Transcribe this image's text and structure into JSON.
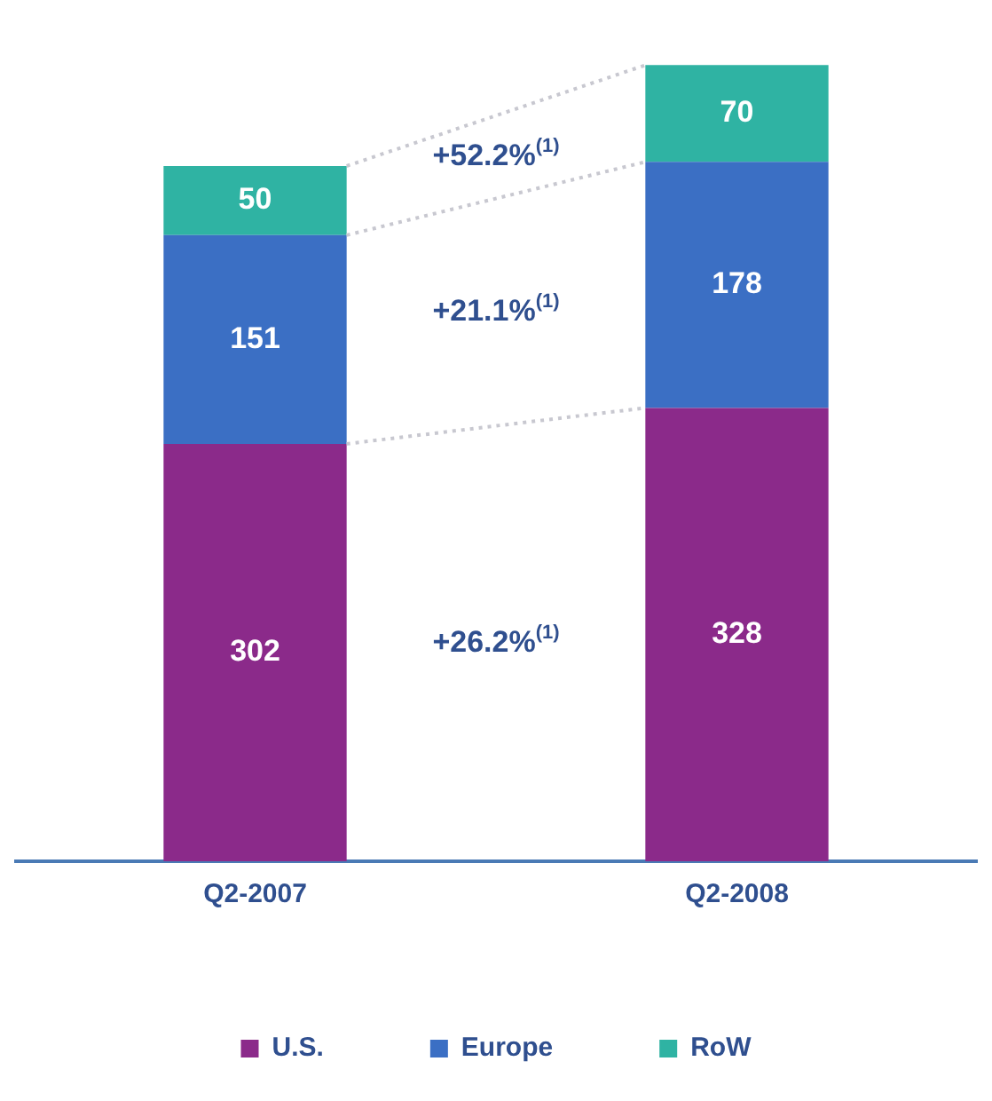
{
  "chart_data": {
    "type": "bar",
    "stacked": true,
    "categories": [
      "Q2-2007",
      "Q2-2008"
    ],
    "series": [
      {
        "name": "U.S.",
        "color": "#8b2a8a",
        "values": [
          302,
          328
        ]
      },
      {
        "name": "Europe",
        "color": "#3b6fc4",
        "values": [
          151,
          178
        ]
      },
      {
        "name": "RoW",
        "color": "#2fb3a3",
        "values": [
          50,
          70
        ]
      }
    ],
    "data_labels": true,
    "legend": "bottom",
    "grid": false,
    "tick_labels": "x",
    "annotations": [
      "+26.2%$^{(1)}$",
      "+21.1%$^{(1)}$",
      "+52.2%$^{(1)}$"
    ]
  }
}
